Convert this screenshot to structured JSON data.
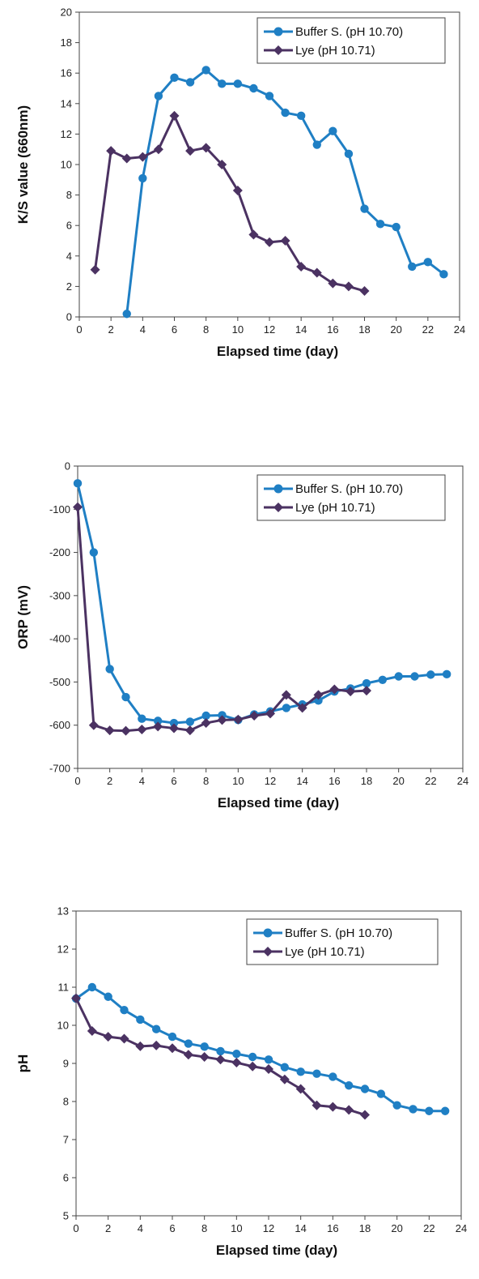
{
  "chart_data": [
    {
      "type": "line",
      "xlabel": "Elapsed time (day)",
      "ylabel": "K/S value (660nm)",
      "xlim": [
        0,
        24
      ],
      "ylim": [
        0,
        20
      ],
      "xticks": [
        0,
        2,
        4,
        6,
        8,
        10,
        12,
        14,
        16,
        18,
        20,
        22,
        24
      ],
      "yticks": [
        0,
        2,
        4,
        6,
        8,
        10,
        12,
        14,
        16,
        18,
        20
      ],
      "grid": false,
      "legend": "top-right",
      "series": [
        {
          "name": "Buffer S. (pH 10.70)",
          "color": "#1f7fc4",
          "marker": "circle",
          "x": [
            3,
            4,
            5,
            6,
            7,
            8,
            9,
            10,
            11,
            12,
            13,
            14,
            15,
            16,
            17,
            18,
            19,
            20,
            21,
            22,
            23
          ],
          "y": [
            0.2,
            9.1,
            14.5,
            15.7,
            15.4,
            16.2,
            15.3,
            15.3,
            15.0,
            14.5,
            13.4,
            13.2,
            11.3,
            12.2,
            10.7,
            7.1,
            6.1,
            5.9,
            3.3,
            3.6,
            2.8
          ]
        },
        {
          "name": "Lye (pH 10.71)",
          "color": "#4b3262",
          "marker": "diamond",
          "x": [
            1,
            2,
            3,
            4,
            5,
            6,
            7,
            8,
            9,
            10,
            11,
            12,
            13,
            14,
            15,
            16,
            17,
            18
          ],
          "y": [
            3.1,
            10.9,
            10.4,
            10.5,
            11.0,
            13.2,
            10.9,
            11.1,
            10.0,
            8.3,
            5.4,
            4.9,
            5.0,
            3.3,
            2.9,
            2.2,
            2.0,
            1.7
          ]
        }
      ]
    },
    {
      "type": "line",
      "xlabel": "Elapsed time (day)",
      "ylabel": "ORP (mV)",
      "xlim": [
        0,
        24
      ],
      "ylim": [
        -700,
        0
      ],
      "xticks": [
        0,
        2,
        4,
        6,
        8,
        10,
        12,
        14,
        16,
        18,
        20,
        22,
        24
      ],
      "yticks": [
        0,
        -100,
        -200,
        -300,
        -400,
        -500,
        -600,
        -700
      ],
      "grid": false,
      "legend": "top-right",
      "series": [
        {
          "name": "Buffer S. (pH 10.70)",
          "color": "#1f7fc4",
          "marker": "circle",
          "x": [
            0,
            1,
            2,
            3,
            4,
            5,
            6,
            7,
            8,
            9,
            10,
            11,
            12,
            13,
            14,
            15,
            16,
            17,
            18,
            19,
            20,
            21,
            22,
            23
          ],
          "y": [
            -40,
            -200,
            -470,
            -535,
            -585,
            -590,
            -595,
            -592,
            -578,
            -577,
            -588,
            -575,
            -568,
            -560,
            -552,
            -543,
            -522,
            -515,
            -503,
            -495,
            -487,
            -487,
            -483,
            -482
          ]
        },
        {
          "name": "Lye (pH 10.71)",
          "color": "#4b3262",
          "marker": "diamond",
          "x": [
            0,
            1,
            2,
            3,
            4,
            5,
            6,
            7,
            8,
            9,
            10,
            11,
            12,
            13,
            14,
            15,
            16,
            17,
            18
          ],
          "y": [
            -95,
            -600,
            -612,
            -613,
            -610,
            -603,
            -607,
            -612,
            -595,
            -588,
            -587,
            -578,
            -573,
            -530,
            -560,
            -530,
            -517,
            -522,
            -520
          ]
        }
      ]
    },
    {
      "type": "line",
      "xlabel": "Elapsed time (day)",
      "ylabel": "pH",
      "xlim": [
        0,
        24
      ],
      "ylim": [
        5,
        13
      ],
      "xticks": [
        0,
        2,
        4,
        6,
        8,
        10,
        12,
        14,
        16,
        18,
        20,
        22,
        24
      ],
      "yticks": [
        5,
        6,
        7,
        8,
        9,
        10,
        11,
        12,
        13
      ],
      "grid": false,
      "legend": "top-right",
      "series": [
        {
          "name": "Buffer S. (pH 10.70)",
          "color": "#1f7fc4",
          "marker": "circle",
          "x": [
            0,
            1,
            2,
            3,
            4,
            5,
            6,
            7,
            8,
            9,
            10,
            11,
            12,
            13,
            14,
            15,
            16,
            17,
            18,
            19,
            20,
            21,
            22,
            23
          ],
          "y": [
            10.7,
            11.0,
            10.75,
            10.4,
            10.15,
            9.9,
            9.7,
            9.52,
            9.44,
            9.32,
            9.25,
            9.17,
            9.1,
            8.9,
            8.78,
            8.73,
            8.65,
            8.42,
            8.33,
            8.2,
            7.9,
            7.8,
            7.75,
            7.75
          ]
        },
        {
          "name": "Lye (pH 10.71)",
          "color": "#4b3262",
          "marker": "diamond",
          "x": [
            0,
            1,
            2,
            3,
            4,
            5,
            6,
            7,
            8,
            9,
            10,
            11,
            12,
            13,
            14,
            15,
            16,
            17,
            18
          ],
          "y": [
            10.71,
            9.85,
            9.7,
            9.65,
            9.45,
            9.47,
            9.4,
            9.23,
            9.17,
            9.1,
            9.02,
            8.92,
            8.85,
            8.58,
            8.33,
            7.9,
            7.86,
            7.78,
            7.65
          ]
        }
      ]
    }
  ]
}
